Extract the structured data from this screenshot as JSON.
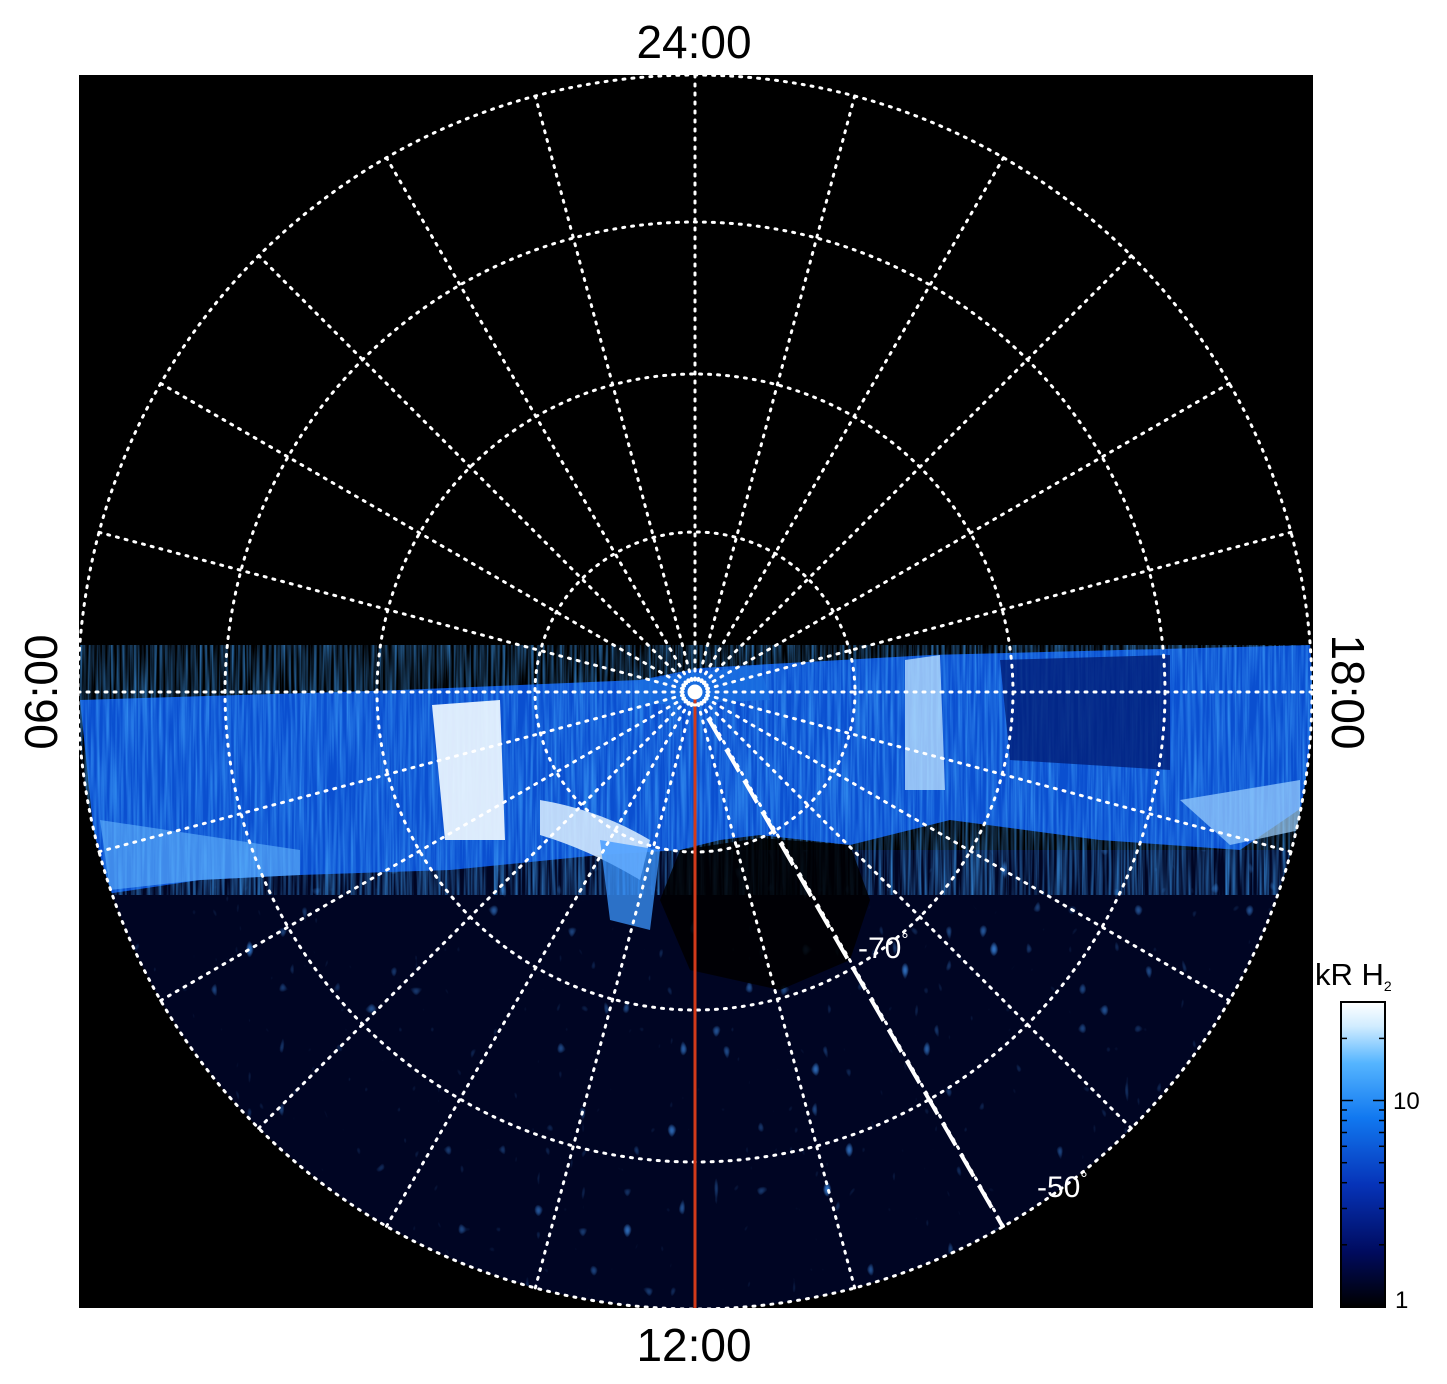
{
  "figure": {
    "local_time_labels": {
      "top": "24:00",
      "bottom": "12:00",
      "left": "06:00",
      "right": "18:00"
    },
    "latitude_labels": {
      "inner": "-70",
      "outer": "-50",
      "degree_symbol": "°"
    },
    "colorbar": {
      "title": "kR H",
      "title_subscript": "2",
      "tick_labels": [
        "10",
        "1"
      ],
      "range": [
        1,
        30
      ],
      "scale": "log",
      "colors": [
        "#000000",
        "#000b5e",
        "#0633b8",
        "#1178f0",
        "#55b5ff",
        "#d0ecff",
        "#ffffff"
      ]
    },
    "colors": {
      "background": "#000000",
      "grid": "#ffffff",
      "meridian_line": "#d23a1a",
      "dashed_line": "#ffffff"
    }
  }
}
